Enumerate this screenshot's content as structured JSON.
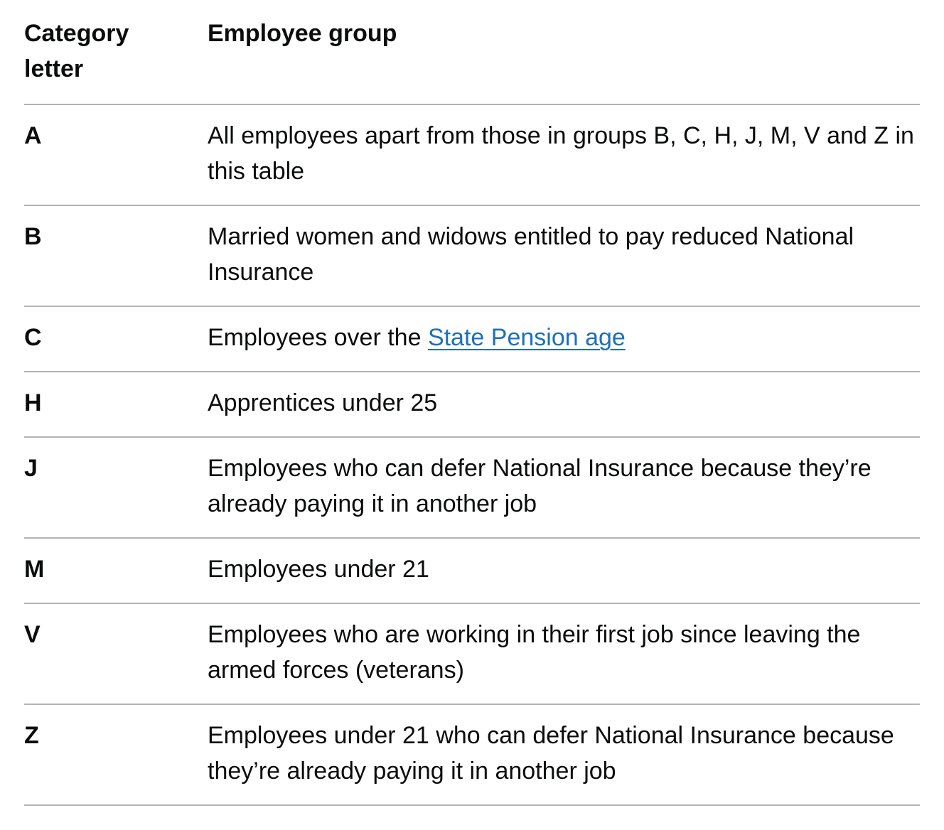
{
  "table": {
    "headers": {
      "category": "Category letter",
      "group": "Employee group"
    },
    "rows": [
      {
        "letter": "A",
        "text": "All employees apart from those in groups B, C, H, J, M, V and Z in this table"
      },
      {
        "letter": "B",
        "text": "Married women and widows entitled to pay reduced National Insurance"
      },
      {
        "letter": "C",
        "text_before": "Employees over the ",
        "link": "State Pension age"
      },
      {
        "letter": "H",
        "text": "Apprentices under 25"
      },
      {
        "letter": "J",
        "text": "Employees who can defer National Insurance because they’re already paying it in another job"
      },
      {
        "letter": "M",
        "text": "Employees under 21"
      },
      {
        "letter": "V",
        "text": "Employees who are working in their first job since leaving the armed forces (veterans)"
      },
      {
        "letter": "Z",
        "text": "Employees under 21 who can defer National Insurance because they’re already paying it in another job"
      }
    ]
  },
  "colors": {
    "text": "#0b0c0c",
    "link": "#1d70b8",
    "border": "#b1b4b6"
  }
}
